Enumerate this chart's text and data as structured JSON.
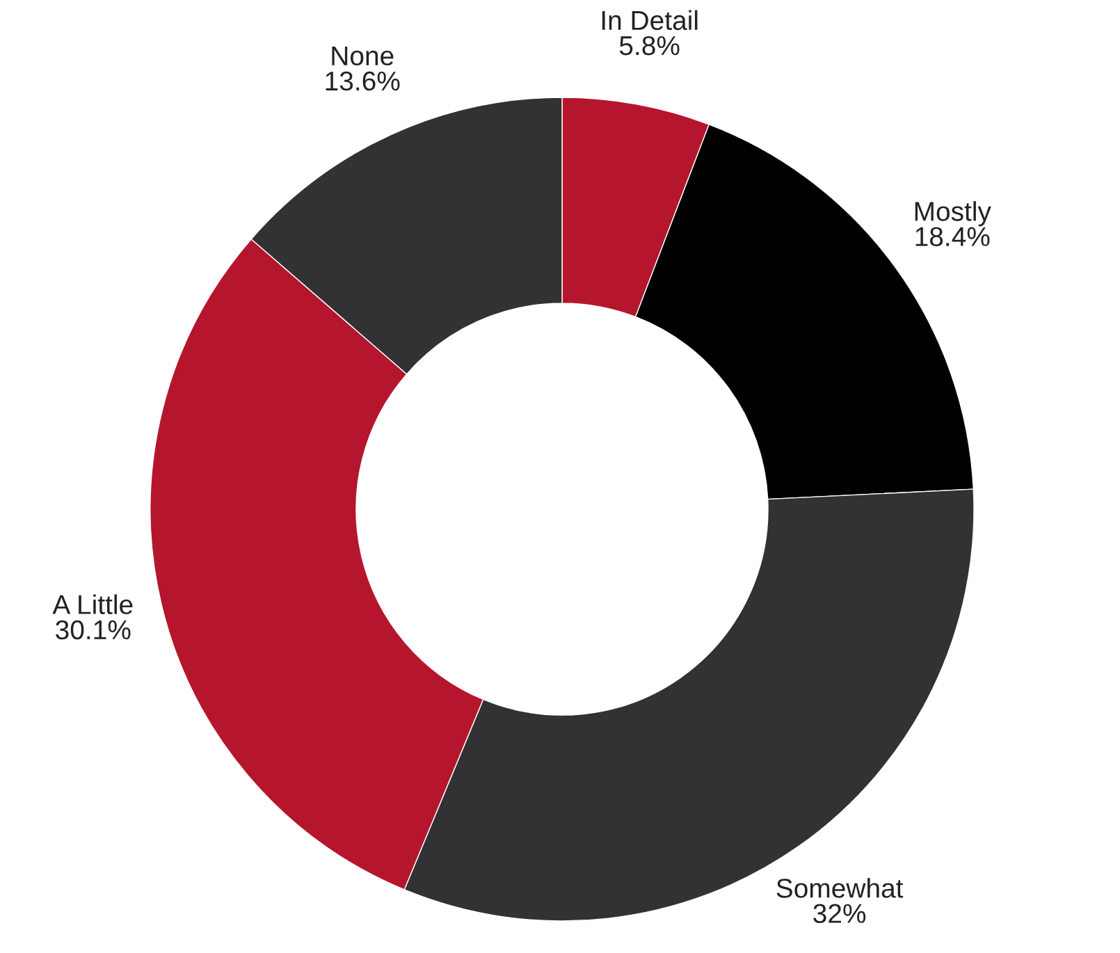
{
  "chart_data": {
    "type": "donut",
    "categories": [
      "In Detail",
      "Mostly",
      "Somewhat",
      "A Little",
      "None"
    ],
    "values": [
      5.8,
      18.4,
      32,
      30.1,
      13.6
    ],
    "value_labels": [
      "5.8%",
      "18.4%",
      "32%",
      "30.1%",
      "13.6%"
    ],
    "colors": [
      "#b5162d",
      "#000000",
      "#323234",
      "#b5162d",
      "#323234"
    ],
    "legend": false
  }
}
